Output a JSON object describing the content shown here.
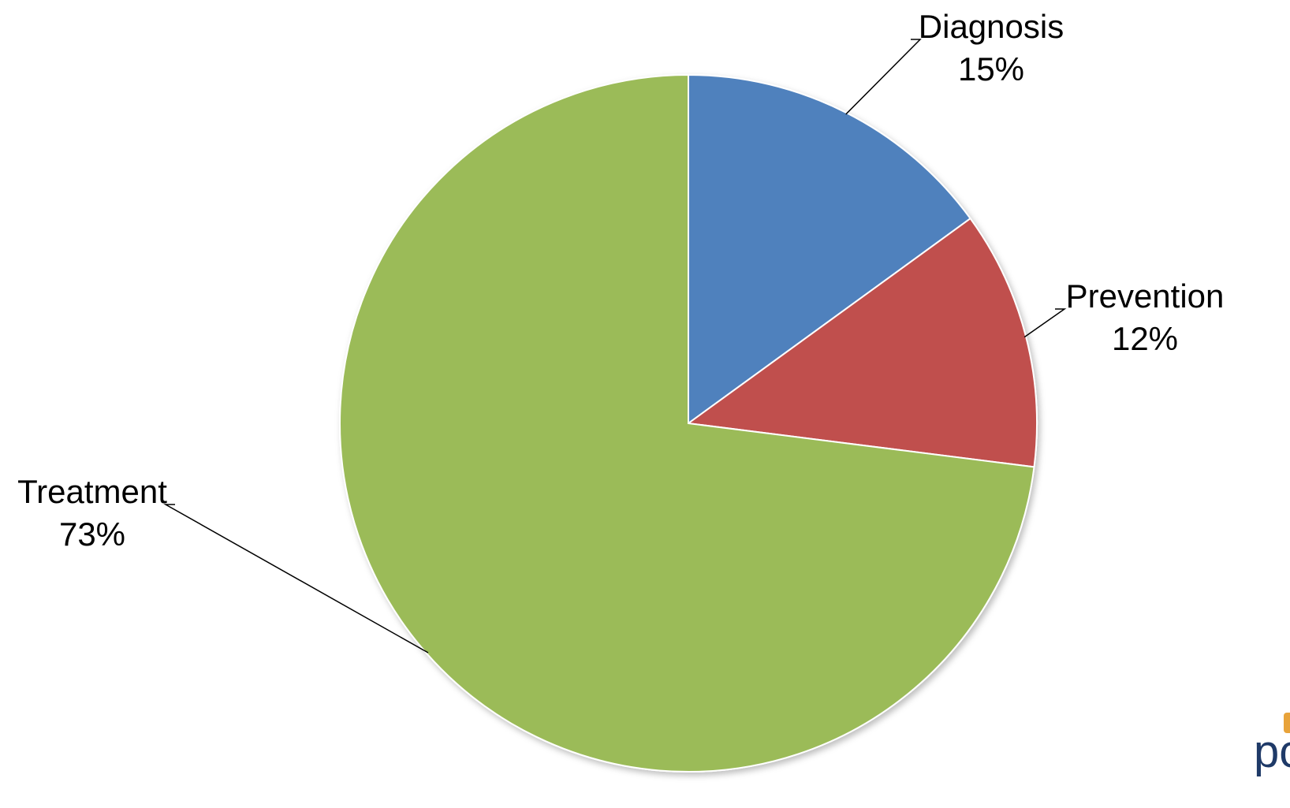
{
  "chart_data": {
    "type": "pie",
    "title": "",
    "start_angle_deg": 0,
    "direction": "clockwise",
    "slices": [
      {
        "label": "Diagnosis",
        "value": 15,
        "value_label": "15%",
        "color": "#4f81bd"
      },
      {
        "label": "Prevention",
        "value": 12,
        "value_label": "12%",
        "color": "#c0504d"
      },
      {
        "label": "Treatment",
        "value": 73,
        "value_label": "73%",
        "color": "#9bbb59"
      }
    ]
  },
  "brand": {
    "text": "pcor",
    "text_color": "#1f3a68",
    "accent_color": "#e8a33a"
  }
}
